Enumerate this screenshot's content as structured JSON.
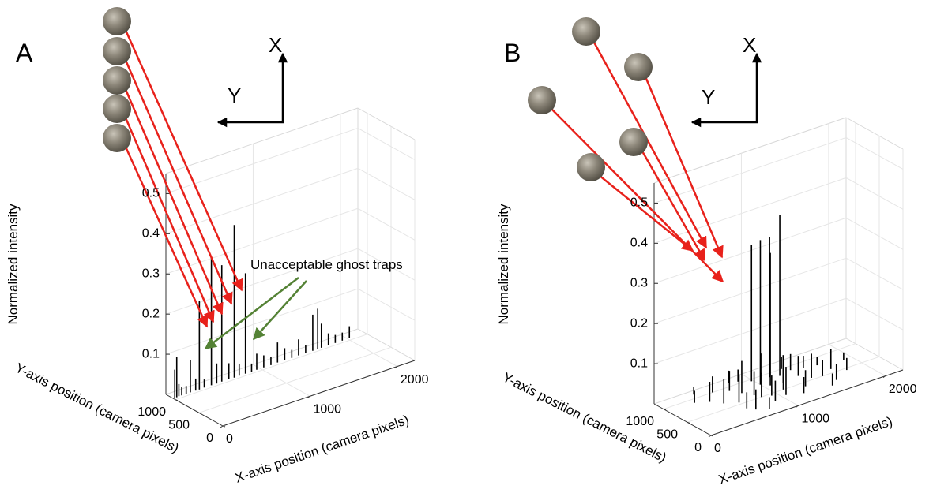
{
  "chart_data": [
    {
      "type": "stem3d",
      "panel_label": "A",
      "zlabel": "Normalized intensity",
      "xlabel": "X-axis position (camera pixels)",
      "ylabel": "Y-axis position (camera pixels)",
      "direction_labels": [
        "X",
        "Y"
      ],
      "annotation": "Unacceptable ghost traps",
      "xlim": [
        0,
        2200
      ],
      "ylim": [
        0,
        1200
      ],
      "zlim": [
        0,
        0.55
      ],
      "xticks": [
        0,
        1000,
        2000
      ],
      "yticks": [
        0,
        500,
        1000
      ],
      "zticks": [
        0.1,
        0.2,
        0.3,
        0.4,
        0.5
      ],
      "grid": true,
      "color": "#000000",
      "x": [
        20,
        40,
        70,
        100,
        150,
        200,
        260,
        300,
        360,
        440,
        500,
        560,
        640,
        700,
        760,
        830,
        900,
        960,
        1040,
        1120,
        1200,
        1280,
        1360,
        1440,
        1520,
        1600,
        1660,
        1700,
        1780,
        1860,
        1940,
        2020
      ],
      "y": [
        1050,
        1045,
        1055,
        1050,
        1048,
        1052,
        1050,
        1046,
        1054,
        1050,
        1048,
        1052,
        1050,
        1047,
        1053,
        1050,
        1049,
        1051,
        1050,
        1046,
        1054,
        1050,
        1048,
        1052,
        1050,
        1047,
        1053,
        1050,
        1049,
        1051,
        1050,
        1048
      ],
      "values": [
        0.07,
        0.1,
        0.03,
        0.02,
        0.02,
        0.08,
        0.03,
        0.22,
        0.02,
        0.32,
        0.05,
        0.29,
        0.04,
        0.38,
        0.03,
        0.25,
        0.02,
        0.04,
        0.03,
        0.02,
        0.05,
        0.03,
        0.02,
        0.04,
        0.02,
        0.09,
        0.1,
        0.06,
        0.03,
        0.02,
        0.02,
        0.03
      ]
    },
    {
      "type": "stem3d",
      "panel_label": "B",
      "zlabel": "Normalized intensity",
      "xlabel": "X-axis position (camera pixels)",
      "ylabel": "Y-axis position (camera pixels)",
      "direction_labels": [
        "X",
        "Y"
      ],
      "xlim": [
        0,
        2200
      ],
      "ylim": [
        0,
        1200
      ],
      "zlim": [
        0,
        0.55
      ],
      "xticks": [
        0,
        1000,
        2000
      ],
      "yticks": [
        0,
        500,
        1000
      ],
      "zticks": [
        0.1,
        0.2,
        0.3,
        0.4,
        0.5
      ],
      "grid": true,
      "color": "#000000",
      "x": [
        1000,
        1060,
        1160,
        1250,
        980,
        300,
        420,
        500,
        560,
        620,
        700,
        760,
        820,
        880,
        940,
        1100,
        1180,
        1300,
        1380,
        1450,
        1520,
        1600,
        1700,
        1800,
        1900,
        400,
        600,
        800,
        900,
        1200,
        1350,
        1500,
        650,
        850,
        1050,
        1400,
        1650,
        750,
        1150,
        1550
      ],
      "y": [
        800,
        700,
        900,
        850,
        950,
        900,
        800,
        650,
        1000,
        550,
        900,
        750,
        600,
        1050,
        450,
        500,
        650,
        400,
        700,
        550,
        850,
        300,
        600,
        450,
        700,
        1100,
        350,
        1100,
        300,
        250,
        1000,
        200,
        250,
        500,
        350,
        900,
        800,
        150,
        1050,
        500
      ],
      "values": [
        0.36,
        0.33,
        0.35,
        0.4,
        0.34,
        0.03,
        0.05,
        0.06,
        0.04,
        0.07,
        0.05,
        0.08,
        0.06,
        0.03,
        0.05,
        0.06,
        0.07,
        0.04,
        0.05,
        0.06,
        0.03,
        0.04,
        0.05,
        0.03,
        0.02,
        0.02,
        0.04,
        0.03,
        0.05,
        0.04,
        0.03,
        0.03,
        0.05,
        0.06,
        0.07,
        0.04,
        0.02,
        0.03,
        0.05,
        0.04
      ]
    }
  ]
}
